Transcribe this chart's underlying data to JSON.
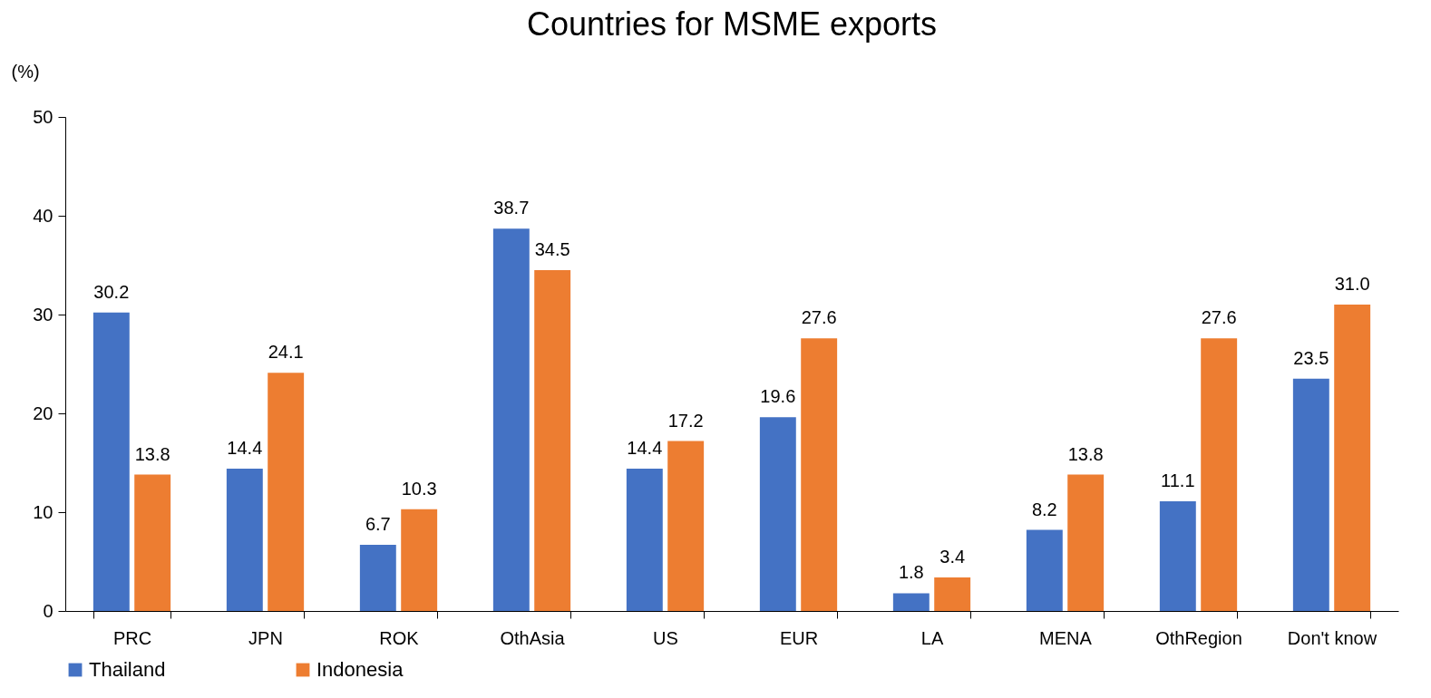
{
  "chart_data": {
    "type": "bar",
    "title": "Countries for MSME exports",
    "ylabel": "(%)",
    "categories": [
      "PRC",
      "JPN",
      "ROK",
      "OthAsia",
      "US",
      "EUR",
      "LA",
      "MENA",
      "OthRegion",
      "Don't know"
    ],
    "series": [
      {
        "name": "Thailand",
        "color": "#4472c4",
        "values": [
          30.2,
          14.4,
          6.7,
          38.7,
          14.4,
          19.6,
          1.8,
          8.2,
          11.1,
          23.5
        ],
        "value_labels": [
          "30.2",
          "14.4",
          "6.7",
          "38.7",
          "14.4",
          "19.6",
          "1.8",
          "8.2",
          "11.1",
          "23.5"
        ]
      },
      {
        "name": "Indonesia",
        "color": "#ed7d31",
        "values": [
          13.8,
          24.1,
          10.3,
          34.5,
          17.2,
          27.6,
          3.4,
          13.8,
          27.6,
          31.0
        ],
        "value_labels": [
          "13.8",
          "24.1",
          "10.3",
          "34.5",
          "17.2",
          "27.6",
          "3.4",
          "13.8",
          "27.6",
          "31.0"
        ]
      }
    ],
    "ylim": [
      0,
      50
    ],
    "yticks": [
      0,
      10,
      20,
      30,
      40,
      50
    ],
    "grid": false,
    "legend": "bottom"
  }
}
